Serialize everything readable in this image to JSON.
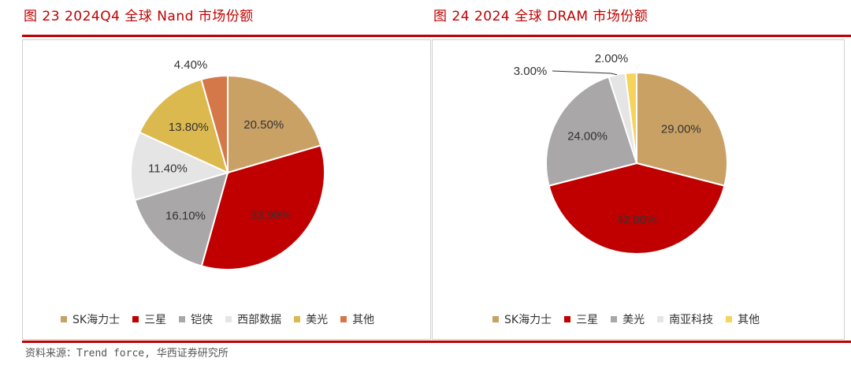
{
  "figures": [
    {
      "title": "图 23   2024Q4 全球 Nand 市场份额"
    },
    {
      "title": "图 24   2024 全球 DRAM 市场份额"
    }
  ],
  "source": "资料来源：Trend force, 华西证券研究所",
  "chart_data": [
    {
      "type": "pie",
      "title": "2024Q4 全球 Nand 市场份额",
      "categories": [
        "SK海力士",
        "三星",
        "铠侠",
        "西部数据",
        "美光",
        "其他"
      ],
      "values": [
        20.5,
        33.9,
        16.1,
        11.4,
        13.8,
        4.4
      ],
      "labels": [
        "20.50%",
        "33.90%",
        "16.10%",
        "11.40%",
        "13.80%",
        "4.40%"
      ],
      "colors": [
        "#c9a165",
        "#c00000",
        "#a9a7a8",
        "#e5e5e5",
        "#dcb94f",
        "#d4784a"
      ],
      "legend": "bottom"
    },
    {
      "type": "pie",
      "title": "2024 全球 DRAM 市场份额",
      "categories": [
        "SK海力士",
        "三星",
        "美光",
        "南亚科技",
        "其他"
      ],
      "values": [
        29.0,
        42.0,
        24.0,
        3.0,
        2.0
      ],
      "labels": [
        "29.00%",
        "42.00%",
        "24.00%",
        "3.00%",
        "2.00%"
      ],
      "colors": [
        "#c9a165",
        "#c00000",
        "#a9a7a8",
        "#e5e5e5",
        "#f6d35b"
      ],
      "legend": "bottom"
    }
  ]
}
